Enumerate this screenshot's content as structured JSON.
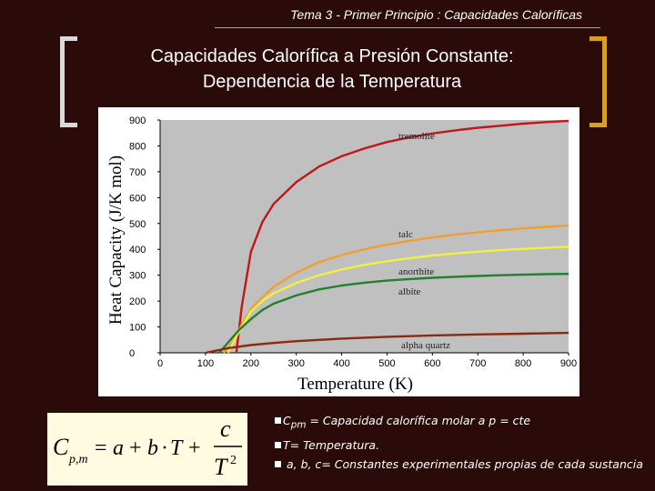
{
  "header": {
    "text": "Tema 3 - Primer Principio : Capacidades Caloríficas"
  },
  "title": {
    "line1": "Capacidades Calorífica a Presión Constante:",
    "line2": "Dependencia de la Temperatura"
  },
  "colors": {
    "background": "#2b0a0a",
    "plot_bg": "#c0c0c0",
    "tremolite": "#c01818",
    "talc": "#f0a030",
    "anorthite": "#f0f040",
    "albite": "#228030",
    "alpha_quartz": "#8a2a10",
    "formula_bg": "#fffbe0"
  },
  "chart_data": {
    "type": "line",
    "xlabel": "Temperature (K)",
    "ylabel": "Heat Capacity (J/K mol)",
    "xlim": [
      0,
      900
    ],
    "ylim": [
      0,
      900
    ],
    "xticks": [
      0,
      100,
      200,
      300,
      400,
      500,
      600,
      700,
      800,
      900
    ],
    "yticks": [
      0,
      100,
      200,
      300,
      400,
      500,
      600,
      700,
      800,
      900
    ],
    "grid": false,
    "series": [
      {
        "name": "tremolite",
        "x": [
          168,
          180,
          200,
          225,
          250,
          300,
          350,
          400,
          450,
          500,
          550,
          600,
          650,
          700,
          750,
          800,
          850,
          900
        ],
        "values": [
          0,
          180,
          390,
          505,
          575,
          660,
          720,
          760,
          790,
          815,
          833,
          848,
          860,
          870,
          878,
          886,
          892,
          897
        ]
      },
      {
        "name": "talc",
        "x": [
          140,
          160,
          180,
          200,
          225,
          250,
          300,
          350,
          400,
          450,
          500,
          550,
          600,
          650,
          700,
          750,
          800,
          850,
          900
        ],
        "values": [
          0,
          40,
          110,
          170,
          215,
          255,
          310,
          350,
          378,
          400,
          418,
          433,
          446,
          457,
          466,
          474,
          481,
          487,
          492
        ]
      },
      {
        "name": "anorthite",
        "x": [
          150,
          170,
          200,
          225,
          250,
          300,
          350,
          400,
          450,
          500,
          550,
          600,
          650,
          700,
          750,
          800,
          850,
          900
        ],
        "values": [
          0,
          70,
          160,
          200,
          230,
          270,
          300,
          322,
          340,
          354,
          366,
          376,
          384,
          391,
          397,
          402,
          406,
          410
        ]
      },
      {
        "name": "albite",
        "x": [
          130,
          150,
          175,
          200,
          225,
          250,
          300,
          350,
          400,
          450,
          500,
          550,
          600,
          650,
          700,
          750,
          800,
          850,
          900
        ],
        "values": [
          0,
          40,
          90,
          130,
          165,
          190,
          222,
          245,
          260,
          271,
          279,
          285,
          290,
          294,
          297,
          300,
          302,
          304,
          305
        ]
      },
      {
        "name": "alpha quartz",
        "x": [
          100,
          150,
          200,
          250,
          300,
          400,
          500,
          600,
          700,
          800,
          900
        ],
        "values": [
          0,
          18,
          30,
          38,
          45,
          55,
          62,
          67,
          71,
          74,
          77
        ]
      }
    ]
  },
  "bullets": [
    {
      "term": "C",
      "sub": "pm",
      "text": " = Capacidad calorífica molar a p = cte"
    },
    {
      "term": "",
      "sub": "",
      "text": "T= Temperatura."
    },
    {
      "term": "",
      "sub": "",
      "text": " a, b, c= Constantes experimentales propias de cada sustancia"
    }
  ]
}
